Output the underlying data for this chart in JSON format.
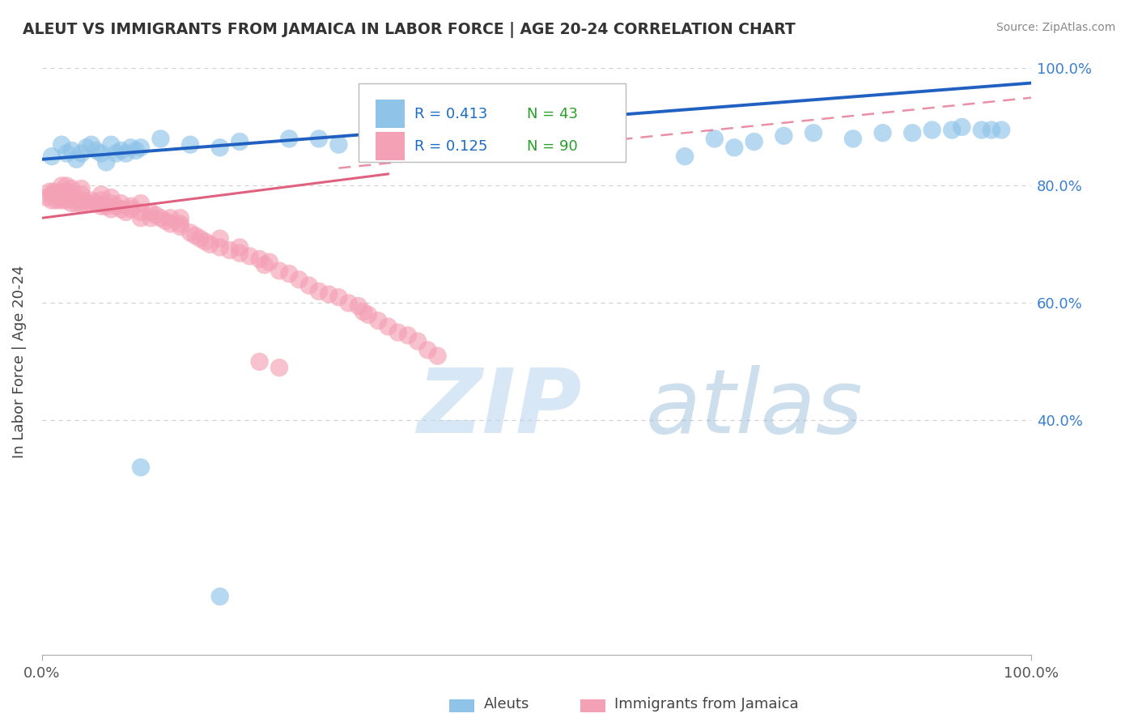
{
  "title": "ALEUT VS IMMIGRANTS FROM JAMAICA IN LABOR FORCE | AGE 20-24 CORRELATION CHART",
  "source": "Source: ZipAtlas.com",
  "ylabel": "In Labor Force | Age 20-24",
  "xlim": [
    0,
    1
  ],
  "ylim": [
    0,
    1
  ],
  "aleuts_color": "#8FC3E8",
  "jamaica_color": "#F4A0B5",
  "trend_blue": "#2060C0",
  "trend_pink": "#E06080",
  "aleuts_R": 0.413,
  "aleuts_N": 43,
  "jamaica_R": 0.125,
  "jamaica_N": 90,
  "watermark_zip": "ZIP",
  "watermark_atlas": "atlas",
  "background_color": "#FFFFFF",
  "grid_color": "#DDDDDD",
  "legend_R_color": "#1A6BC4",
  "legend_N_color": "#28A028",
  "aleuts_x": [
    0.01,
    0.02,
    0.025,
    0.03,
    0.035,
    0.04,
    0.045,
    0.05,
    0.055,
    0.06,
    0.065,
    0.07,
    0.075,
    0.08,
    0.085,
    0.09,
    0.095,
    0.1,
    0.12,
    0.15,
    0.18,
    0.2,
    0.25,
    0.28,
    0.3,
    0.35,
    0.65,
    0.68,
    0.7,
    0.72,
    0.75,
    0.78,
    0.82,
    0.85,
    0.88,
    0.9,
    0.92,
    0.93,
    0.95,
    0.96,
    0.97,
    0.1,
    0.18
  ],
  "aleuts_y": [
    0.85,
    0.87,
    0.855,
    0.86,
    0.845,
    0.855,
    0.865,
    0.87,
    0.86,
    0.855,
    0.84,
    0.87,
    0.855,
    0.86,
    0.855,
    0.865,
    0.86,
    0.865,
    0.88,
    0.87,
    0.865,
    0.875,
    0.88,
    0.88,
    0.87,
    0.875,
    0.85,
    0.88,
    0.865,
    0.875,
    0.885,
    0.89,
    0.88,
    0.89,
    0.89,
    0.895,
    0.895,
    0.9,
    0.895,
    0.895,
    0.895,
    0.32,
    0.1
  ],
  "jamaica_x": [
    0.005,
    0.008,
    0.01,
    0.01,
    0.012,
    0.015,
    0.015,
    0.018,
    0.02,
    0.02,
    0.02,
    0.02,
    0.025,
    0.025,
    0.025,
    0.025,
    0.03,
    0.03,
    0.03,
    0.03,
    0.035,
    0.035,
    0.04,
    0.04,
    0.04,
    0.04,
    0.045,
    0.05,
    0.05,
    0.055,
    0.06,
    0.06,
    0.06,
    0.065,
    0.07,
    0.07,
    0.07,
    0.075,
    0.08,
    0.08,
    0.085,
    0.09,
    0.09,
    0.1,
    0.1,
    0.1,
    0.11,
    0.11,
    0.115,
    0.12,
    0.125,
    0.13,
    0.13,
    0.14,
    0.14,
    0.14,
    0.15,
    0.155,
    0.16,
    0.165,
    0.17,
    0.18,
    0.18,
    0.19,
    0.2,
    0.2,
    0.21,
    0.22,
    0.225,
    0.23,
    0.24,
    0.25,
    0.26,
    0.27,
    0.28,
    0.29,
    0.3,
    0.31,
    0.32,
    0.325,
    0.33,
    0.34,
    0.35,
    0.36,
    0.37,
    0.38,
    0.39,
    0.4,
    0.22,
    0.24
  ],
  "jamaica_y": [
    0.78,
    0.79,
    0.775,
    0.785,
    0.79,
    0.775,
    0.785,
    0.78,
    0.775,
    0.785,
    0.79,
    0.8,
    0.775,
    0.785,
    0.79,
    0.8,
    0.77,
    0.78,
    0.785,
    0.795,
    0.77,
    0.78,
    0.77,
    0.775,
    0.785,
    0.795,
    0.77,
    0.77,
    0.775,
    0.77,
    0.765,
    0.775,
    0.785,
    0.765,
    0.76,
    0.77,
    0.78,
    0.765,
    0.76,
    0.77,
    0.755,
    0.76,
    0.765,
    0.745,
    0.755,
    0.77,
    0.745,
    0.755,
    0.75,
    0.745,
    0.74,
    0.735,
    0.745,
    0.73,
    0.735,
    0.745,
    0.72,
    0.715,
    0.71,
    0.705,
    0.7,
    0.695,
    0.71,
    0.69,
    0.685,
    0.695,
    0.68,
    0.675,
    0.665,
    0.67,
    0.655,
    0.65,
    0.64,
    0.63,
    0.62,
    0.615,
    0.61,
    0.6,
    0.595,
    0.585,
    0.58,
    0.57,
    0.56,
    0.55,
    0.545,
    0.535,
    0.52,
    0.51,
    0.5,
    0.49
  ]
}
